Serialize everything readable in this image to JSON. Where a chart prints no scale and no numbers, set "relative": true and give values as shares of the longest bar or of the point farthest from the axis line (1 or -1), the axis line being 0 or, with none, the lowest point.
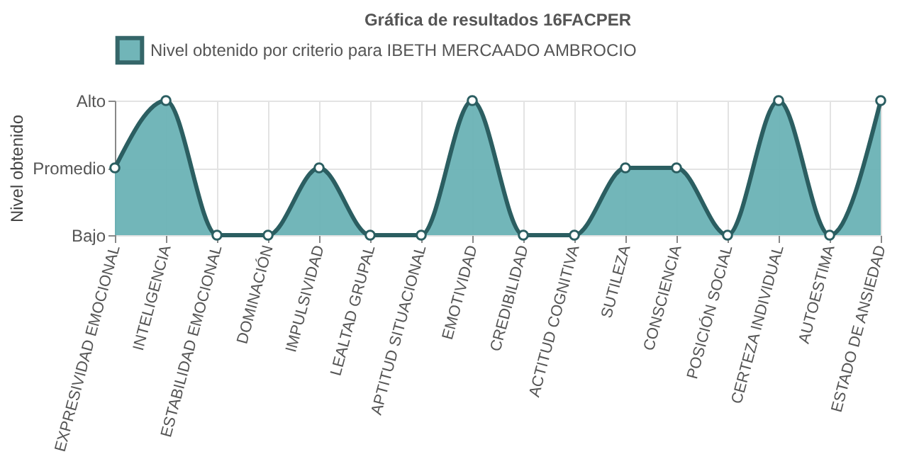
{
  "chart_data": {
    "type": "area",
    "title": "Gráfica de resultados 16FACPER",
    "ylabel": "Nivel obtenido",
    "categories": [
      "EXPRESIVIDAD EMOCIONAL",
      "INTELIGENCIA",
      "ESTABILIDAD EMOCIONAL",
      "DOMINACIÓN",
      "IMPULSIVIDAD",
      "LEALTAD GRUPAL",
      "APTITUD SITUACIONAL",
      "EMOTIVIDAD",
      "CREDIBILIDAD",
      "ACTITUD COGNITIVA",
      "SUTILEZA",
      "CONSCIENCIA",
      "POSICIÓN SOCIAL",
      "CERTEZA INDIVIDUAL",
      "AUTOESTIMA",
      "ESTADO DE ANSIEDAD"
    ],
    "series": [
      {
        "name": "Nivel obtenido por criterio para IBETH MERCAADO AMBROCIO",
        "color": "#6ab2b5",
        "values": [
          0.5,
          1,
          0,
          0,
          0.5,
          0,
          0,
          1,
          0,
          0,
          0.5,
          0.5,
          0,
          1,
          0,
          1
        ]
      }
    ],
    "relative": true,
    "annotations": [
      "Bajo",
      "Promedio",
      "Alto"
    ],
    "grid": true,
    "legend": "top",
    "marker": "circle",
    "line_style": "solid"
  }
}
